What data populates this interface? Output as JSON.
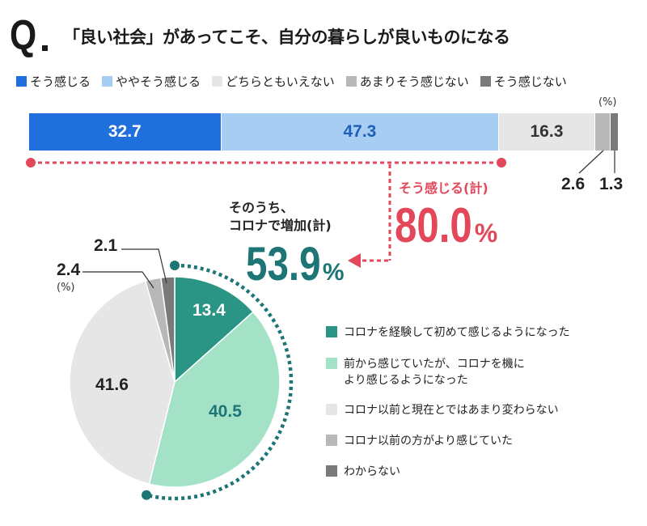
{
  "header": {
    "q": "Q",
    "title": "「良い社会」があってこそ、自分の暮らしが良いものになる"
  },
  "colors": {
    "blue": "#1f6fdc",
    "lightblue": "#a7cdf2",
    "lightgray": "#e6e6e6",
    "gray": "#b8b8b8",
    "darkgray": "#7a7a7a",
    "teal": "#2a9485",
    "mint": "#a4e2c8",
    "pie_light": "#e6e6e6",
    "red": "#e2475a",
    "tealtext": "#1e7575"
  },
  "notes": {
    "unit_top": "(%)",
    "unit_pie": "(%)",
    "agree_total_label": "そう感じる(計)",
    "agree_total_value": "80.0",
    "agree_total_unit": "%",
    "subset_label_line1": "そのうち、",
    "subset_label_line2": "コロナで増加(計)",
    "subset_value": "53.9",
    "subset_unit": "%"
  },
  "chart_data": [
    {
      "type": "bar",
      "orientation": "horizontal-stacked",
      "unit": "%",
      "series": [
        {
          "name": "そう感じる",
          "value": 32.7,
          "label": "32.7",
          "color": "#1f6fdc"
        },
        {
          "name": "ややそう感じる",
          "value": 47.3,
          "label": "47.3",
          "color": "#a7cdf2"
        },
        {
          "name": "どちらともいえない",
          "value": 16.3,
          "label": "16.3",
          "color": "#e6e6e6"
        },
        {
          "name": "あまりそう感じない",
          "value": 2.6,
          "label": "2.6",
          "color": "#b8b8b8"
        },
        {
          "name": "そう感じない",
          "value": 1.3,
          "label": "1.3",
          "color": "#7a7a7a"
        }
      ]
    },
    {
      "type": "pie",
      "unit": "%",
      "slices": [
        {
          "name": "コロナを経験して初めて感じるようになった",
          "value": 13.4,
          "label": "13.4",
          "color": "#2a9485"
        },
        {
          "name": "前から感じていたが、コロナを機により感じるようになった",
          "value": 40.5,
          "label": "40.5",
          "color": "#a4e2c8"
        },
        {
          "name": "コロナ以前と現在とではあまり変わらない",
          "value": 41.6,
          "label": "41.6",
          "color": "#e6e6e6"
        },
        {
          "name": "コロナ以前の方がより感じていた",
          "value": 2.4,
          "label": "2.4",
          "color": "#b8b8b8"
        },
        {
          "name": "わからない",
          "value": 2.1,
          "label": "2.1",
          "color": "#7a7a7a"
        }
      ],
      "legend": [
        {
          "line1": "コロナを経験して初めて感じるようになった",
          "line2": ""
        },
        {
          "line1": "前から感じていたが、コロナを機に",
          "line2": "より感じるようになった"
        },
        {
          "line1": "コロナ以前と現在とではあまり変わらない",
          "line2": ""
        },
        {
          "line1": "コロナ以前の方がより感じていた",
          "line2": ""
        },
        {
          "line1": "わからない",
          "line2": ""
        }
      ]
    }
  ]
}
